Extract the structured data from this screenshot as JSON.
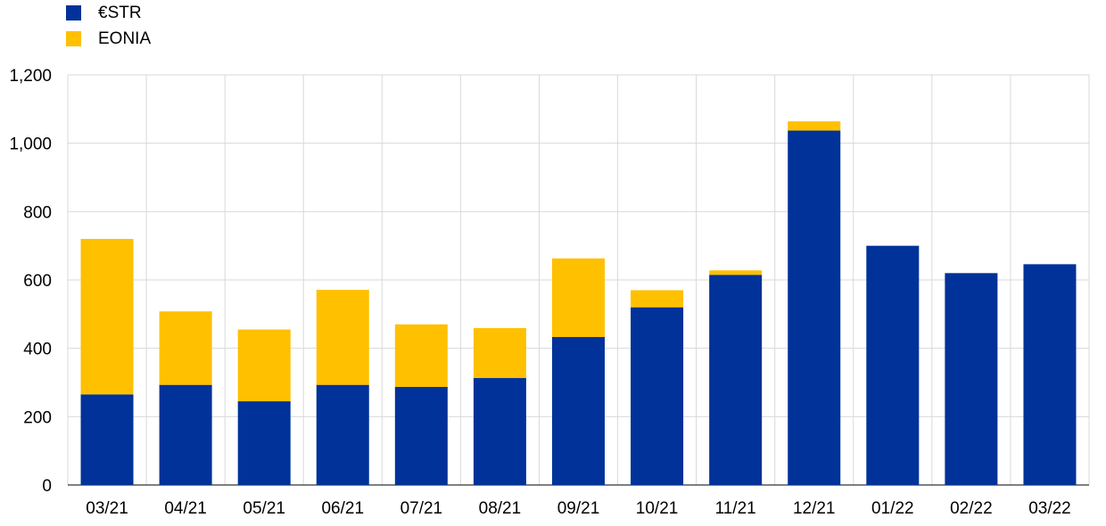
{
  "chart_data": {
    "type": "bar",
    "stacked": true,
    "categories": [
      "03/21",
      "04/21",
      "05/21",
      "06/21",
      "07/21",
      "08/21",
      "09/21",
      "10/21",
      "11/21",
      "12/21",
      "01/22",
      "02/22",
      "03/22"
    ],
    "series": [
      {
        "name": "€STR",
        "color": "#003299",
        "values": [
          265,
          293,
          245,
          293,
          287,
          313,
          433,
          520,
          615,
          1037,
          700,
          620,
          646
        ]
      },
      {
        "name": "EONIA",
        "color": "#FFC000",
        "values": [
          455,
          215,
          210,
          278,
          183,
          146,
          230,
          50,
          13,
          27,
          0,
          0,
          0
        ]
      }
    ],
    "ylim": [
      0,
      1200
    ],
    "yticks": [
      0,
      200,
      400,
      600,
      800,
      1000,
      1200
    ],
    "ytick_labels": [
      "0",
      "200",
      "400",
      "600",
      "800",
      "1,000",
      "1,200"
    ],
    "grid": true,
    "legend_position": "top-left"
  }
}
